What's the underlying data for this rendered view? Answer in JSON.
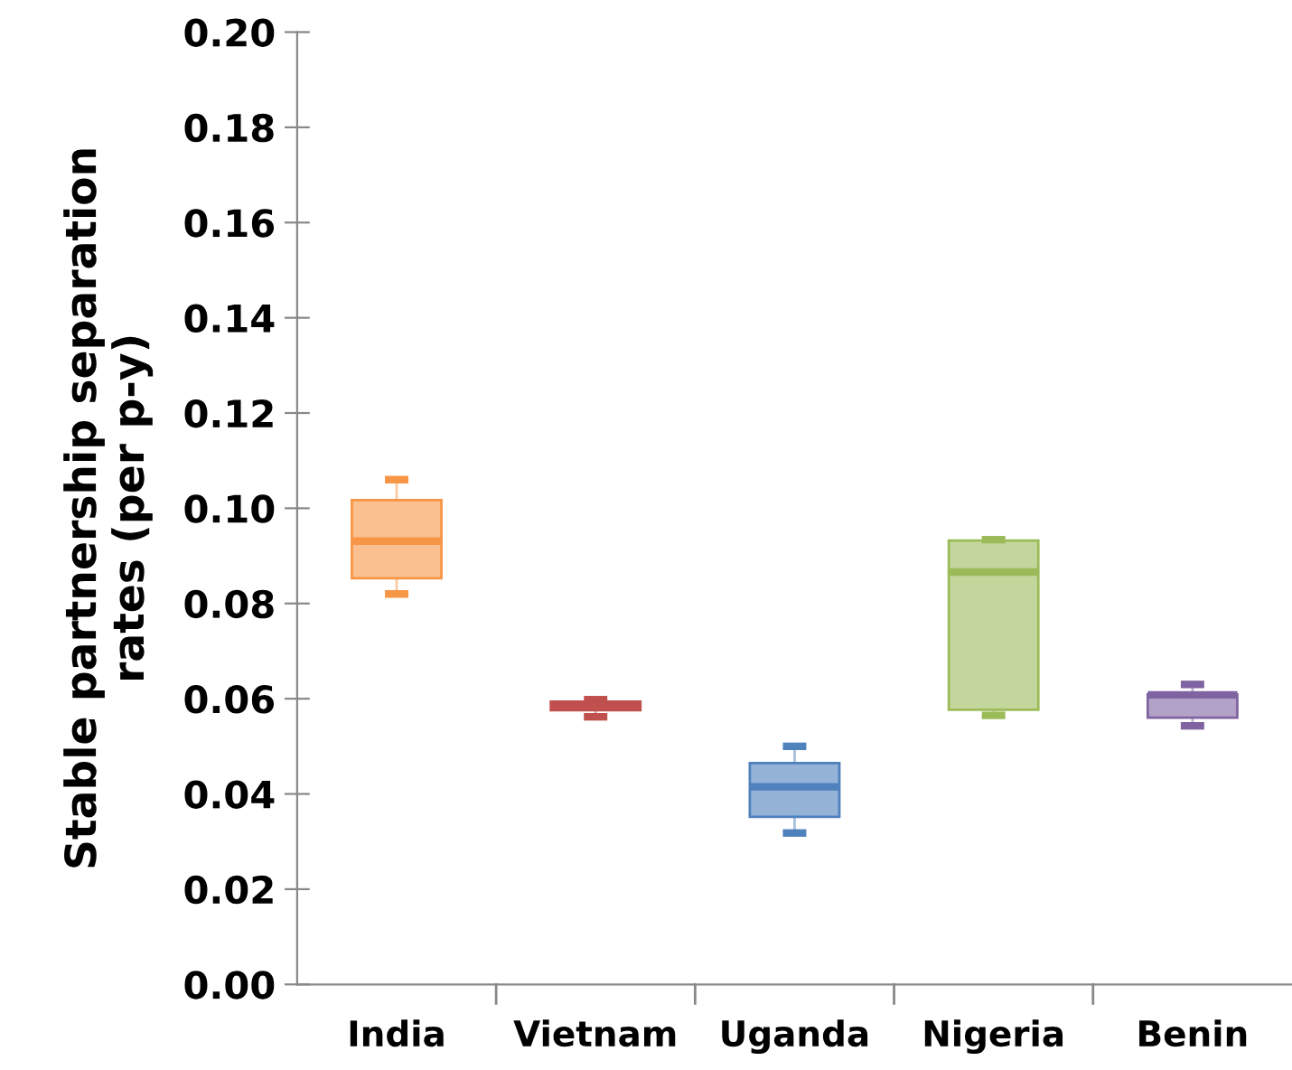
{
  "chart_data": {
    "type": "box",
    "ylabel": "Stable partnership separation\nrates (per p-y)",
    "categories": [
      "India",
      "Vietnam",
      "Uganda",
      "Nigeria",
      "Benin"
    ],
    "boxes": [
      {
        "low": 0.082,
        "q1": 0.0853,
        "median": 0.0931,
        "q3": 0.1017,
        "high": 0.106
      },
      {
        "low": 0.0562,
        "q1": 0.0576,
        "median": 0.0585,
        "q3": 0.0594,
        "high": 0.0598
      },
      {
        "low": 0.0318,
        "q1": 0.0352,
        "median": 0.0415,
        "q3": 0.0465,
        "high": 0.05
      },
      {
        "low": 0.0565,
        "q1": 0.0577,
        "median": 0.0866,
        "q3": 0.0932,
        "high": 0.0934
      },
      {
        "low": 0.0543,
        "q1": 0.056,
        "median": 0.0608,
        "q3": 0.0609,
        "high": 0.063
      }
    ],
    "colors": [
      "#f79646",
      "#c0504d",
      "#4f81bd",
      "#9bbb59",
      "#8064a2"
    ],
    "ylim": [
      0,
      0.2
    ],
    "yticks": [
      {
        "value": 0,
        "label": "0.00"
      },
      0.02,
      0.04,
      0.06,
      0.08,
      {
        "value": 0.1,
        "label": "0.10"
      },
      0.12,
      0.14,
      0.16,
      0.18,
      {
        "value": 0.2,
        "label": "0.20"
      }
    ],
    "grid": false,
    "legend": false
  }
}
